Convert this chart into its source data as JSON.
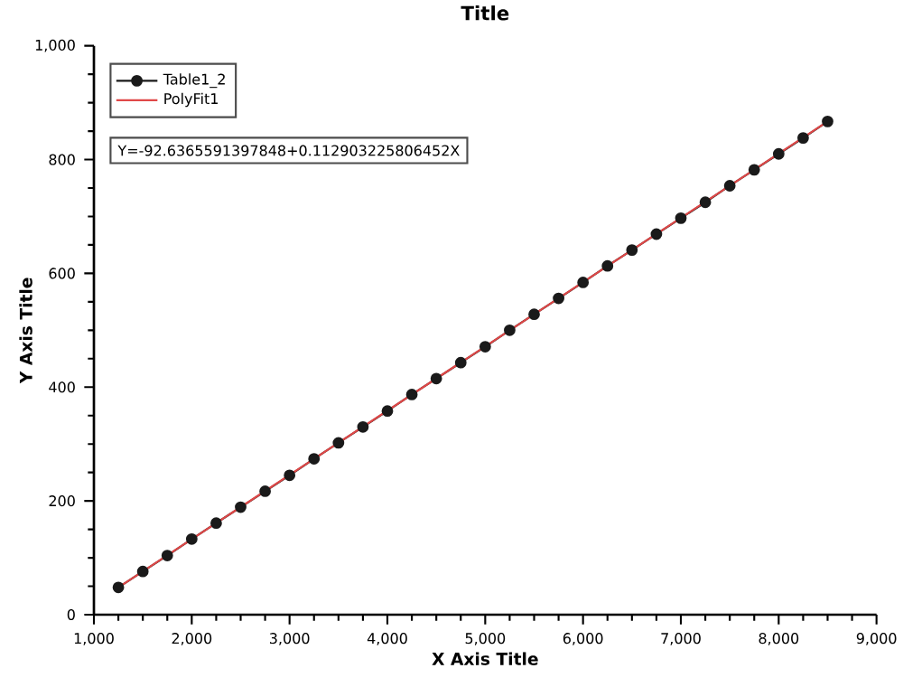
{
  "chart_data": {
    "type": "line",
    "title": "Title",
    "xlabel": "X Axis Title",
    "ylabel": "Y Axis Title",
    "annotations": [
      "Y=-92.6365591397848+0.112903225806452X"
    ],
    "x": [
      1250,
      1500,
      1750,
      2000,
      2250,
      2500,
      2750,
      3000,
      3250,
      3500,
      3750,
      4000,
      4250,
      4500,
      4750,
      5000,
      5250,
      5500,
      5750,
      6000,
      6250,
      6500,
      6750,
      7000,
      7250,
      7500,
      7750,
      8000,
      8250,
      8500
    ],
    "series": [
      {
        "name": "Table1_2",
        "color": "#1a1a1a",
        "marker": "circle",
        "values": [
          48,
          76,
          104,
          133,
          161,
          189,
          217,
          245,
          274,
          302,
          330,
          358,
          387,
          415,
          443,
          471,
          500,
          528,
          556,
          584,
          613,
          641,
          669,
          697,
          725,
          754,
          782,
          810,
          838,
          867
        ]
      },
      {
        "name": "PolyFit1",
        "color": "#e04848",
        "marker": "none",
        "x": [
          1250,
          8500
        ],
        "values": [
          48,
          867
        ]
      }
    ],
    "xlim": [
      1000,
      9000
    ],
    "ylim": [
      0,
      1000
    ],
    "xticks": [
      {
        "value": 1000,
        "label": "1,000"
      },
      {
        "value": 2000,
        "label": "2,000"
      },
      {
        "value": 3000,
        "label": "3,000"
      },
      {
        "value": 4000,
        "label": "4,000"
      },
      {
        "value": 5000,
        "label": "5,000"
      },
      {
        "value": 6000,
        "label": "6,000"
      },
      {
        "value": 7000,
        "label": "7,000"
      },
      {
        "value": 8000,
        "label": "8,000"
      },
      {
        "value": 9000,
        "label": "9,000"
      }
    ],
    "yticks": [
      0,
      200,
      400,
      600,
      800,
      {
        "value": 1000,
        "label": "1,000"
      }
    ],
    "grid": false,
    "legend": "top left"
  }
}
